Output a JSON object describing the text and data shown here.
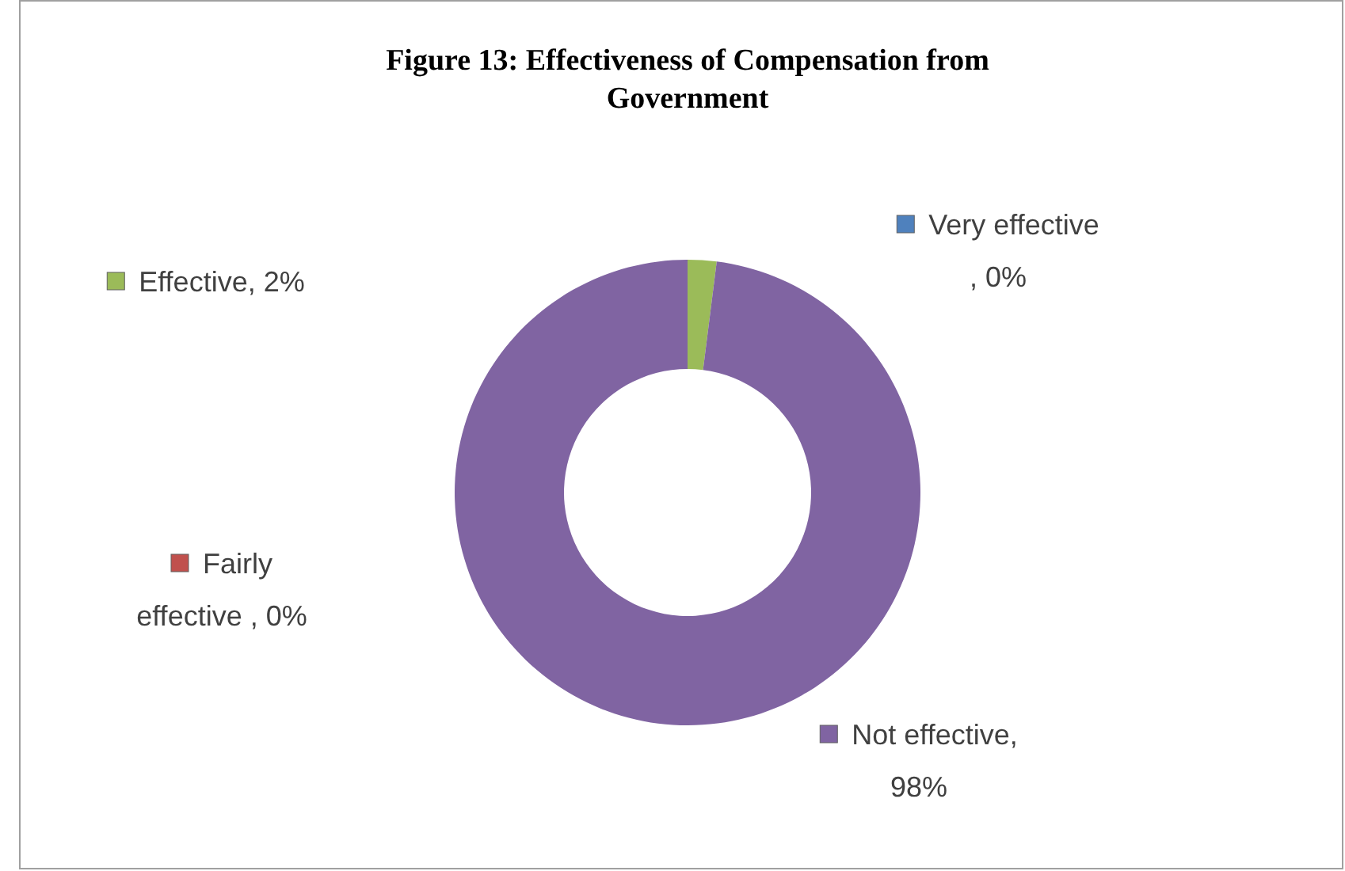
{
  "chart_data": {
    "type": "donut",
    "title": "Figure 13: Effectiveness of Compensation from Government",
    "categories": [
      "Very effective",
      "Effective",
      "Fairly effective",
      "Not effective"
    ],
    "values": [
      0,
      2,
      0,
      98
    ],
    "colors": [
      "#4f81bd",
      "#9bbb59",
      "#c0504d",
      "#8064a2"
    ],
    "value_labels": [
      " , 0%",
      ", 2%",
      " , 0%",
      ", 98%"
    ],
    "legend": "bottom left"
  }
}
